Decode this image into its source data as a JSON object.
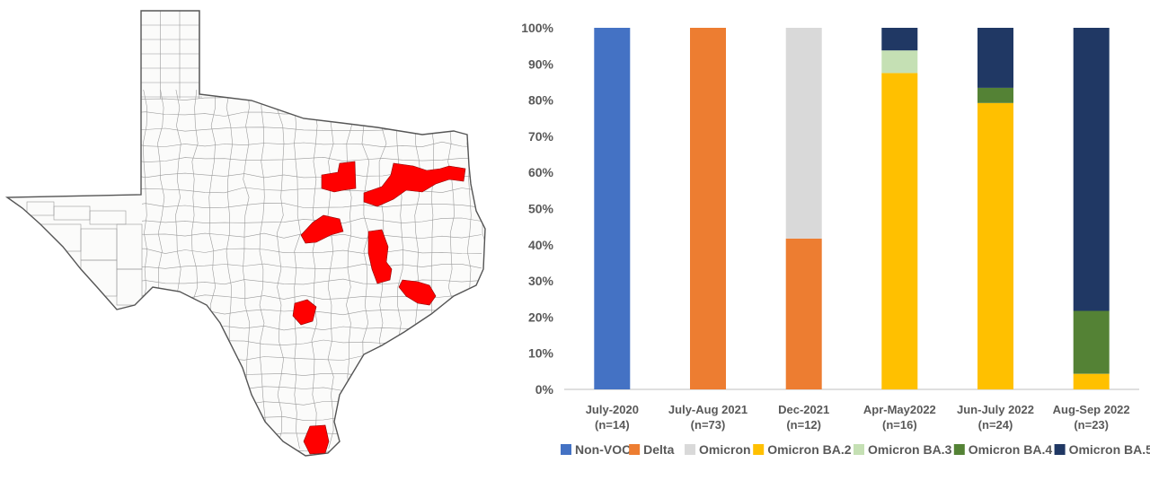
{
  "map": {
    "description_label": "Texas county map",
    "highlight_color": "#FF0000"
  },
  "chart_data": {
    "type": "bar",
    "stacked": true,
    "categories": [
      "July-2020",
      "July-Aug 2021",
      "Dec-2021",
      "Apr-May2022",
      "Jun-July 2022",
      "Aug-Sep 2022"
    ],
    "category_counts": [
      "(n=14)",
      "(n=73)",
      "(n=12)",
      "(n=16)",
      "(n=24)",
      "(n=23)"
    ],
    "ylim": [
      0,
      100
    ],
    "yticks": [
      "0%",
      "10%",
      "20%",
      "30%",
      "40%",
      "50%",
      "60%",
      "70%",
      "80%",
      "90%",
      "100%"
    ],
    "grid": false,
    "legend_position": "bottom",
    "series": [
      {
        "name": "Non-VOC",
        "color": "#4472C4",
        "values": [
          100,
          0,
          0,
          0,
          0,
          0
        ]
      },
      {
        "name": "Delta",
        "color": "#ED7D31",
        "values": [
          0,
          100,
          41.7,
          0,
          0,
          0
        ]
      },
      {
        "name": "Omicron",
        "color": "#D9D9D9",
        "values": [
          0,
          0,
          58.3,
          0,
          0,
          0
        ]
      },
      {
        "name": "Omicron BA.2",
        "color": "#FFC000",
        "values": [
          0,
          0,
          0,
          87.5,
          79.2,
          4.3
        ]
      },
      {
        "name": "Omicron BA.3",
        "color": "#C5E0B4",
        "values": [
          0,
          0,
          0,
          6.25,
          0,
          0
        ]
      },
      {
        "name": "Omicron BA.4",
        "color": "#548235",
        "values": [
          0,
          0,
          0,
          0,
          4.2,
          17.4
        ]
      },
      {
        "name": "Omicron BA.5",
        "color": "#203864",
        "values": [
          0,
          0,
          0,
          6.25,
          16.6,
          78.3
        ]
      }
    ]
  }
}
